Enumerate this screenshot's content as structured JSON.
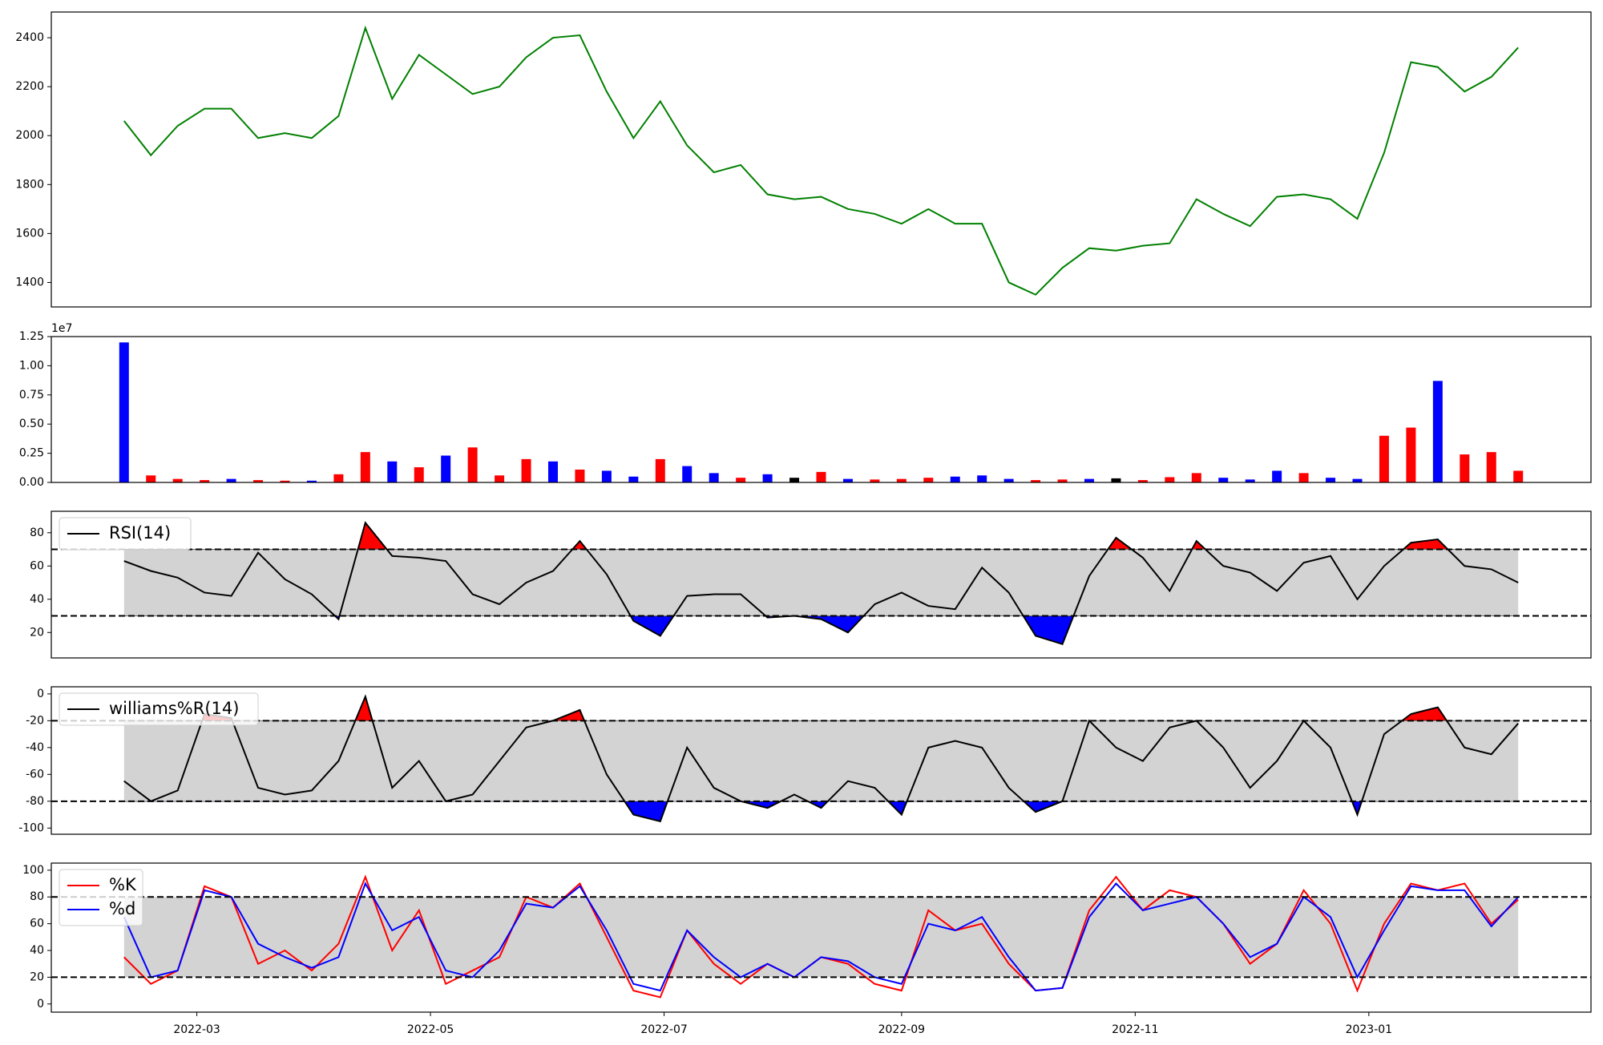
{
  "chart_data": [
    {
      "type": "line",
      "x": [
        "2022-02-10",
        "2022-02-17",
        "2022-02-24",
        "2022-03-03",
        "2022-03-10",
        "2022-03-17",
        "2022-03-24",
        "2022-03-31",
        "2022-04-07",
        "2022-04-14",
        "2022-04-21",
        "2022-04-28",
        "2022-05-05",
        "2022-05-12",
        "2022-05-19",
        "2022-05-26",
        "2022-06-02",
        "2022-06-09",
        "2022-06-16",
        "2022-06-23",
        "2022-06-30",
        "2022-07-07",
        "2022-07-14",
        "2022-07-21",
        "2022-07-28",
        "2022-08-04",
        "2022-08-11",
        "2022-08-18",
        "2022-08-25",
        "2022-09-01",
        "2022-09-08",
        "2022-09-15",
        "2022-09-22",
        "2022-09-29",
        "2022-10-06",
        "2022-10-13",
        "2022-10-20",
        "2022-10-27",
        "2022-11-03",
        "2022-11-10",
        "2022-11-17",
        "2022-11-24",
        "2022-12-01",
        "2022-12-08",
        "2022-12-15",
        "2022-12-22",
        "2022-12-29",
        "2023-01-05",
        "2023-01-12",
        "2023-01-19",
        "2023-01-26",
        "2023-02-02",
        "2023-02-09"
      ],
      "xlim": [
        "2022-01-22",
        "2023-02-28"
      ],
      "series": [
        {
          "color": "green",
          "values": [
            2060,
            1920,
            2040,
            2110,
            2110,
            1990,
            2010,
            1990,
            2080,
            2440,
            2150,
            2330,
            2250,
            2170,
            2200,
            2320,
            2400,
            2410,
            2180,
            1990,
            2140,
            1960,
            1850,
            1880,
            1760,
            1740,
            1750,
            1700,
            1680,
            1640,
            1700,
            1640,
            1640,
            1400,
            1350,
            1460,
            1540,
            1530,
            1550,
            1560,
            1740,
            1680,
            1630,
            1750,
            1760,
            1740,
            1660,
            1930,
            2300,
            2280,
            2180,
            2240,
            2360
          ]
        }
      ],
      "ylim": [
        1300,
        2505
      ],
      "yticks": [
        1400,
        1600,
        1800,
        2000,
        2200,
        2400
      ]
    },
    {
      "type": "bar",
      "values": [
        12000000,
        600000,
        300000,
        200000,
        300000,
        200000,
        150000,
        150000,
        700000,
        2600000,
        1800000,
        1300000,
        2300000,
        3000000,
        600000,
        2000000,
        1800000,
        1100000,
        1000000,
        500000,
        2000000,
        1400000,
        800000,
        400000,
        700000,
        400000,
        900000,
        300000,
        250000,
        300000,
        400000,
        500000,
        600000,
        300000,
        200000,
        250000,
        300000,
        350000,
        200000,
        450000,
        800000,
        400000,
        250000,
        1000000,
        800000,
        400000,
        300000,
        4000000,
        4700000,
        8700000,
        2400000,
        2600000,
        1000000
      ],
      "colors": [
        "blue",
        "red",
        "red",
        "red",
        "blue",
        "red",
        "red",
        "blue",
        "red",
        "red",
        "blue",
        "red",
        "blue",
        "red",
        "red",
        "red",
        "blue",
        "red",
        "blue",
        "blue",
        "red",
        "blue",
        "blue",
        "red",
        "blue",
        "black",
        "red",
        "blue",
        "red",
        "red",
        "red",
        "blue",
        "blue",
        "blue",
        "red",
        "red",
        "blue",
        "black",
        "red",
        "red",
        "red",
        "blue",
        "blue",
        "blue",
        "red",
        "blue",
        "blue",
        "red",
        "red",
        "blue",
        "red",
        "red",
        "red"
      ],
      "ylim": [
        0,
        12500000
      ],
      "yticks": [
        {
          "value": 0,
          "label": "0.00"
        },
        {
          "value": 2500000,
          "label": "0.25"
        },
        {
          "value": 5000000,
          "label": "0.50"
        },
        {
          "value": 7500000,
          "label": "0.75"
        },
        {
          "value": 10000000,
          "label": "1.00"
        },
        {
          "value": 12500000,
          "label": "1.25"
        }
      ],
      "offset_label": "1e7"
    },
    {
      "type": "line",
      "series": [
        {
          "name": "RSI(14)",
          "color": "black",
          "values": [
            63,
            57,
            53,
            44,
            42,
            68,
            52,
            43,
            28,
            86,
            66,
            65,
            63,
            43,
            37,
            50,
            57,
            75,
            55,
            27,
            18,
            42,
            43,
            43,
            29,
            30,
            28,
            20,
            37,
            44,
            36,
            34,
            59,
            44,
            18,
            13,
            54,
            77,
            65,
            45,
            75,
            60,
            56,
            45,
            62,
            66,
            40,
            60,
            74,
            76,
            60,
            58,
            50
          ]
        }
      ],
      "bands": [
        30,
        70
      ],
      "band_color": "lightgray",
      "fill_colors": [
        "red",
        "blue"
      ],
      "legend": "upper left",
      "ylim": [
        4.7,
        92.9
      ],
      "yticks": [
        20,
        40,
        60,
        80
      ]
    },
    {
      "type": "line",
      "series": [
        {
          "name": "williams%R(14)",
          "color": "black",
          "values": [
            -65,
            -80,
            -72,
            -15,
            -18,
            -70,
            -75,
            -72,
            -50,
            -2,
            -70,
            -50,
            -80,
            -75,
            -50,
            -25,
            -20,
            -12,
            -60,
            -90,
            -95,
            -40,
            -70,
            -80,
            -85,
            -75,
            -85,
            -65,
            -70,
            -90,
            -40,
            -35,
            -40,
            -70,
            -88,
            -80,
            -20,
            -40,
            -50,
            -25,
            -20,
            -40,
            -70,
            -50,
            -20,
            -40,
            -90,
            -30,
            -15,
            -10,
            -40,
            -45,
            -22
          ]
        }
      ],
      "bands": [
        -80,
        -20
      ],
      "band_color": "lightgray",
      "fill_colors": [
        "red",
        "blue"
      ],
      "legend": "upper left",
      "ylim": [
        -104.6,
        5.3
      ],
      "yticks": [
        -100,
        -80,
        -60,
        -40,
        -20,
        0
      ]
    },
    {
      "type": "line",
      "series": [
        {
          "name": "%K",
          "color": "red",
          "values": [
            35,
            15,
            25,
            88,
            80,
            30,
            40,
            25,
            45,
            95,
            40,
            70,
            15,
            25,
            35,
            80,
            72,
            90,
            50,
            10,
            5,
            55,
            30,
            15,
            30,
            20,
            35,
            30,
            15,
            10,
            70,
            55,
            60,
            30,
            10,
            12,
            70,
            95,
            70,
            85,
            80,
            60,
            30,
            45,
            85,
            60,
            10,
            60,
            90,
            85,
            90,
            60,
            78
          ]
        },
        {
          "name": "%d",
          "color": "blue",
          "values": [
            65,
            20,
            25,
            85,
            80,
            45,
            35,
            27,
            35,
            90,
            55,
            65,
            25,
            20,
            40,
            75,
            72,
            88,
            55,
            15,
            10,
            55,
            35,
            20,
            30,
            20,
            35,
            32,
            20,
            15,
            60,
            55,
            65,
            35,
            10,
            12,
            65,
            90,
            70,
            75,
            80,
            60,
            35,
            45,
            80,
            65,
            20,
            55,
            88,
            85,
            85,
            58,
            80
          ]
        }
      ],
      "bands": [
        20,
        80
      ],
      "band_color": "lightgray",
      "legend": "upper left",
      "ylim": [
        -6.1,
        105.3
      ],
      "yticks": [
        0,
        20,
        40,
        60,
        80,
        100
      ],
      "xticks": [
        {
          "value": "2022-03-01",
          "label": "2022-03"
        },
        {
          "value": "2022-05-01",
          "label": "2022-05"
        },
        {
          "value": "2022-07-01",
          "label": "2022-07"
        },
        {
          "value": "2022-09-01",
          "label": "2022-09"
        },
        {
          "value": "2022-11-01",
          "label": "2022-11"
        },
        {
          "value": "2023-01-01",
          "label": "2023-01"
        }
      ]
    }
  ]
}
